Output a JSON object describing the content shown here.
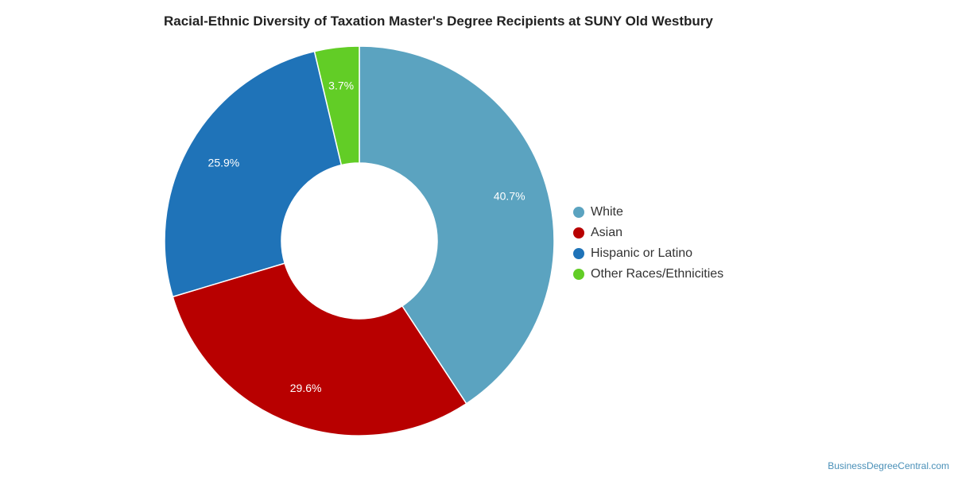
{
  "chart_data": {
    "type": "pie",
    "title": "Racial-Ethnic Diversity of Taxation Master's Degree Recipients at SUNY Old Westbury",
    "categories": [
      "White",
      "Asian",
      "Hispanic or Latino",
      "Other Races/Ethnicities"
    ],
    "values": [
      40.7,
      29.6,
      25.9,
      3.7
    ],
    "labels": [
      "40.7%",
      "29.6%",
      "25.9%",
      "3.7%"
    ],
    "colors": [
      "#5ba3c0",
      "#b80000",
      "#1f73b8",
      "#62cd26"
    ],
    "donut": true,
    "legend_position": "right"
  },
  "credit": "BusinessDegreeCentral.com"
}
